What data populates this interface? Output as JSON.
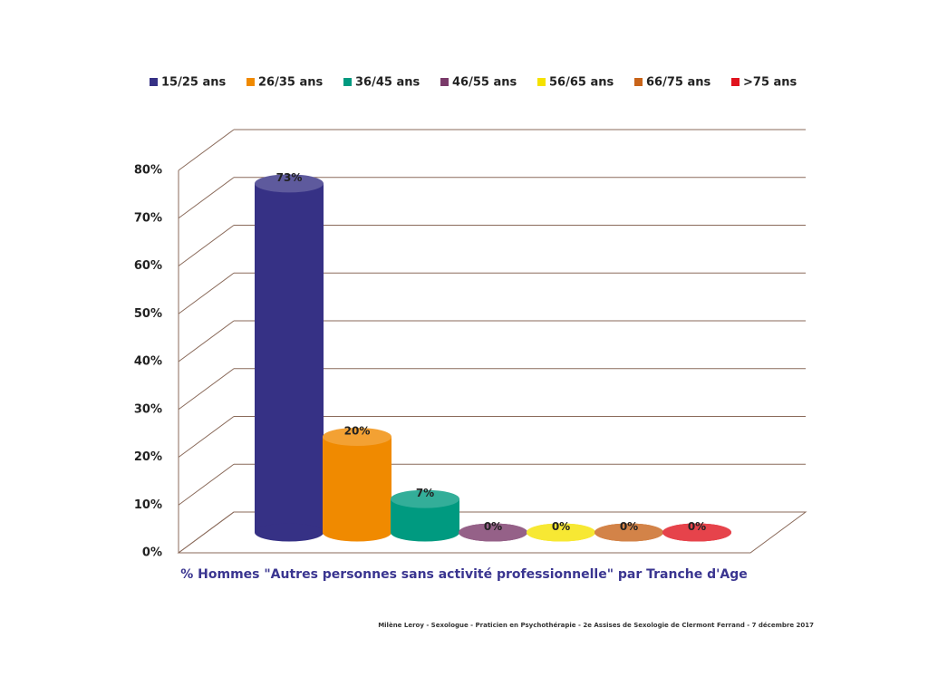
{
  "chart_data": {
    "type": "bar",
    "x_label": "% Hommes \"Autres personnes sans activité professionnelle\" par Tranche d'Age",
    "footnote": "Milène Leroy - Sexologue - Praticien en Psychothérapie - 2e Assises de Sexologie de Clermont Ferrand - 7 décembre 2017",
    "series": [
      {
        "name": "15/25 ans",
        "color": "#363185",
        "values": [
          73
        ],
        "value_labels": [
          "73%"
        ]
      },
      {
        "name": "26/35 ans",
        "color": "#f08a00",
        "values": [
          20
        ],
        "value_labels": [
          "20%"
        ]
      },
      {
        "name": "36/45 ans",
        "color": "#009a80",
        "values": [
          7
        ],
        "value_labels": [
          "7%"
        ]
      },
      {
        "name": "46/55 ans",
        "color": "#7a3a6a",
        "values": [
          0
        ],
        "value_labels": [
          "0%"
        ]
      },
      {
        "name": "56/65 ans",
        "color": "#f5e200",
        "values": [
          0
        ],
        "value_labels": [
          "0%"
        ]
      },
      {
        "name": "66/75 ans",
        "color": "#c8641a",
        "values": [
          0
        ],
        "value_labels": [
          "0%"
        ]
      },
      {
        "name": ">75 ans",
        "color": "#e0141e",
        "values": [
          0
        ],
        "value_labels": [
          "0%"
        ]
      }
    ],
    "ylim": [
      0,
      80
    ],
    "yticks": [
      {
        "value": 0,
        "label": "0%"
      },
      {
        "value": 10,
        "label": "10%"
      },
      {
        "value": 20,
        "label": "20%"
      },
      {
        "value": 30,
        "label": "30%"
      },
      {
        "value": 40,
        "label": "40%"
      },
      {
        "value": 50,
        "label": "50%"
      },
      {
        "value": 60,
        "label": "60%"
      },
      {
        "value": 70,
        "label": "70%"
      },
      {
        "value": 80,
        "label": "80%"
      }
    ],
    "grid": true,
    "legend": "top"
  }
}
